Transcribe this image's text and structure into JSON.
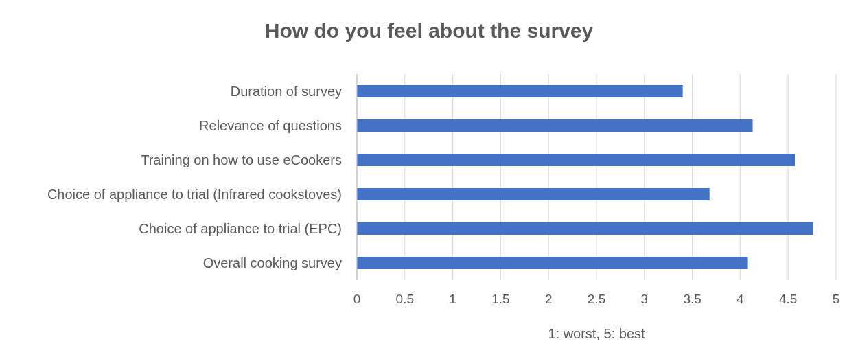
{
  "chart_data": {
    "type": "bar",
    "orientation": "horizontal",
    "title": "How do you feel about the survey",
    "xlabel": "1: worst, 5: best",
    "categories": [
      "Duration of survey",
      "Relevance of questions",
      "Training on how to use eCookers",
      "Choice of appliance to trial (Infrared cookstoves)",
      "Choice of appliance to trial (EPC)",
      "Overall cooking survey"
    ],
    "values": [
      3.4,
      4.13,
      4.57,
      3.68,
      4.76,
      4.08
    ],
    "color": "#4472c4",
    "xlim": [
      0,
      5
    ],
    "xticks": [
      0,
      0.5,
      1,
      1.5,
      2,
      2.5,
      3,
      3.5,
      4,
      4.5,
      5
    ],
    "grid": "x"
  }
}
